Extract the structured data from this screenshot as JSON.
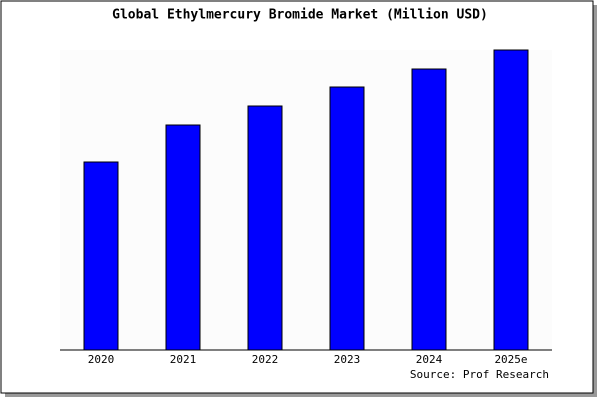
{
  "chart_data": {
    "type": "bar",
    "title": "Global Ethylmercury Bromide Market (Million USD)",
    "categories": [
      "2020",
      "2021",
      "2022",
      "2023",
      "2024",
      "2025e"
    ],
    "values": [
      188,
      225,
      244,
      263,
      281,
      300
    ],
    "color": "#0000ff",
    "ylim": [
      0,
      300
    ],
    "source": "Source: Prof Research"
  }
}
